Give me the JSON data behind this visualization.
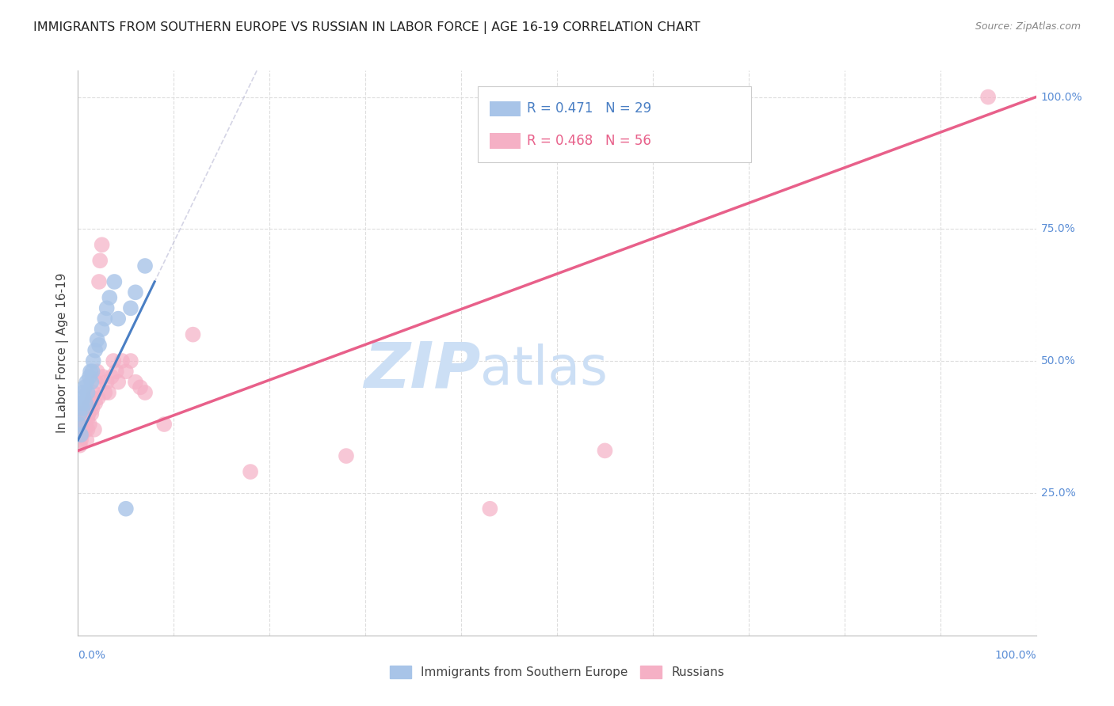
{
  "title": "IMMIGRANTS FROM SOUTHERN EUROPE VS RUSSIAN IN LABOR FORCE | AGE 16-19 CORRELATION CHART",
  "source": "Source: ZipAtlas.com",
  "ylabel": "In Labor Force | Age 16-19",
  "x_label_bottom_left": "0.0%",
  "x_label_bottom_right": "100.0%",
  "right_labels": [
    [
      1.0,
      "100.0%"
    ],
    [
      0.75,
      "75.0%"
    ],
    [
      0.5,
      "50.0%"
    ],
    [
      0.25,
      "25.0%"
    ]
  ],
  "legend_r_blue": "R = 0.471",
  "legend_n_blue": "N = 29",
  "legend_r_pink": "R = 0.468",
  "legend_n_pink": "N = 56",
  "legend_label_blue": "Immigrants from Southern Europe",
  "legend_label_pink": "Russians",
  "blue_color": "#a8c4e8",
  "pink_color": "#f5b0c5",
  "trend_blue_color": "#4a7fc4",
  "trend_pink_color": "#e8608a",
  "blue_scatter_x": [
    0.001,
    0.002,
    0.003,
    0.004,
    0.005,
    0.005,
    0.006,
    0.007,
    0.008,
    0.009,
    0.01,
    0.012,
    0.013,
    0.014,
    0.015,
    0.016,
    0.018,
    0.02,
    0.022,
    0.025,
    0.028,
    0.03,
    0.033,
    0.038,
    0.042,
    0.05,
    0.055,
    0.06,
    0.07
  ],
  "blue_scatter_y": [
    0.38,
    0.4,
    0.36,
    0.42,
    0.44,
    0.41,
    0.43,
    0.45,
    0.42,
    0.46,
    0.44,
    0.47,
    0.48,
    0.46,
    0.48,
    0.5,
    0.52,
    0.54,
    0.53,
    0.56,
    0.58,
    0.6,
    0.62,
    0.65,
    0.58,
    0.22,
    0.6,
    0.63,
    0.68
  ],
  "pink_scatter_x": [
    0.001,
    0.001,
    0.002,
    0.002,
    0.003,
    0.003,
    0.004,
    0.004,
    0.005,
    0.005,
    0.006,
    0.006,
    0.007,
    0.007,
    0.008,
    0.008,
    0.009,
    0.009,
    0.01,
    0.01,
    0.011,
    0.012,
    0.013,
    0.014,
    0.015,
    0.015,
    0.016,
    0.017,
    0.018,
    0.019,
    0.02,
    0.021,
    0.022,
    0.023,
    0.025,
    0.026,
    0.028,
    0.03,
    0.032,
    0.035,
    0.037,
    0.04,
    0.042,
    0.046,
    0.05,
    0.055,
    0.06,
    0.065,
    0.07,
    0.09,
    0.12,
    0.18,
    0.28,
    0.43,
    0.55,
    0.95
  ],
  "pink_scatter_y": [
    0.36,
    0.38,
    0.34,
    0.37,
    0.35,
    0.38,
    0.36,
    0.39,
    0.37,
    0.4,
    0.37,
    0.39,
    0.38,
    0.4,
    0.37,
    0.39,
    0.35,
    0.41,
    0.39,
    0.37,
    0.4,
    0.38,
    0.42,
    0.4,
    0.43,
    0.41,
    0.44,
    0.37,
    0.42,
    0.46,
    0.48,
    0.43,
    0.65,
    0.69,
    0.72,
    0.47,
    0.44,
    0.46,
    0.44,
    0.47,
    0.5,
    0.48,
    0.46,
    0.5,
    0.48,
    0.5,
    0.46,
    0.45,
    0.44,
    0.38,
    0.55,
    0.29,
    0.32,
    0.22,
    0.33,
    1.0
  ],
  "blue_trend_x": [
    0.0,
    0.08
  ],
  "blue_trend_y": [
    0.35,
    0.65
  ],
  "pink_trend_x": [
    0.0,
    1.0
  ],
  "pink_trend_y": [
    0.33,
    1.0
  ],
  "xlim": [
    0.0,
    1.0
  ],
  "ylim": [
    -0.02,
    1.05
  ],
  "y_axis_min": 0.0,
  "y_axis_max": 1.0,
  "background_color": "#ffffff",
  "grid_color": "#dddddd",
  "title_color": "#222222",
  "right_label_color": "#5b8ed6",
  "bottom_label_color": "#5b8ed6",
  "legend_blue_text_color": "#4a7fc4",
  "legend_pink_text_color": "#e8608a",
  "watermark_color": "#ccdff5"
}
